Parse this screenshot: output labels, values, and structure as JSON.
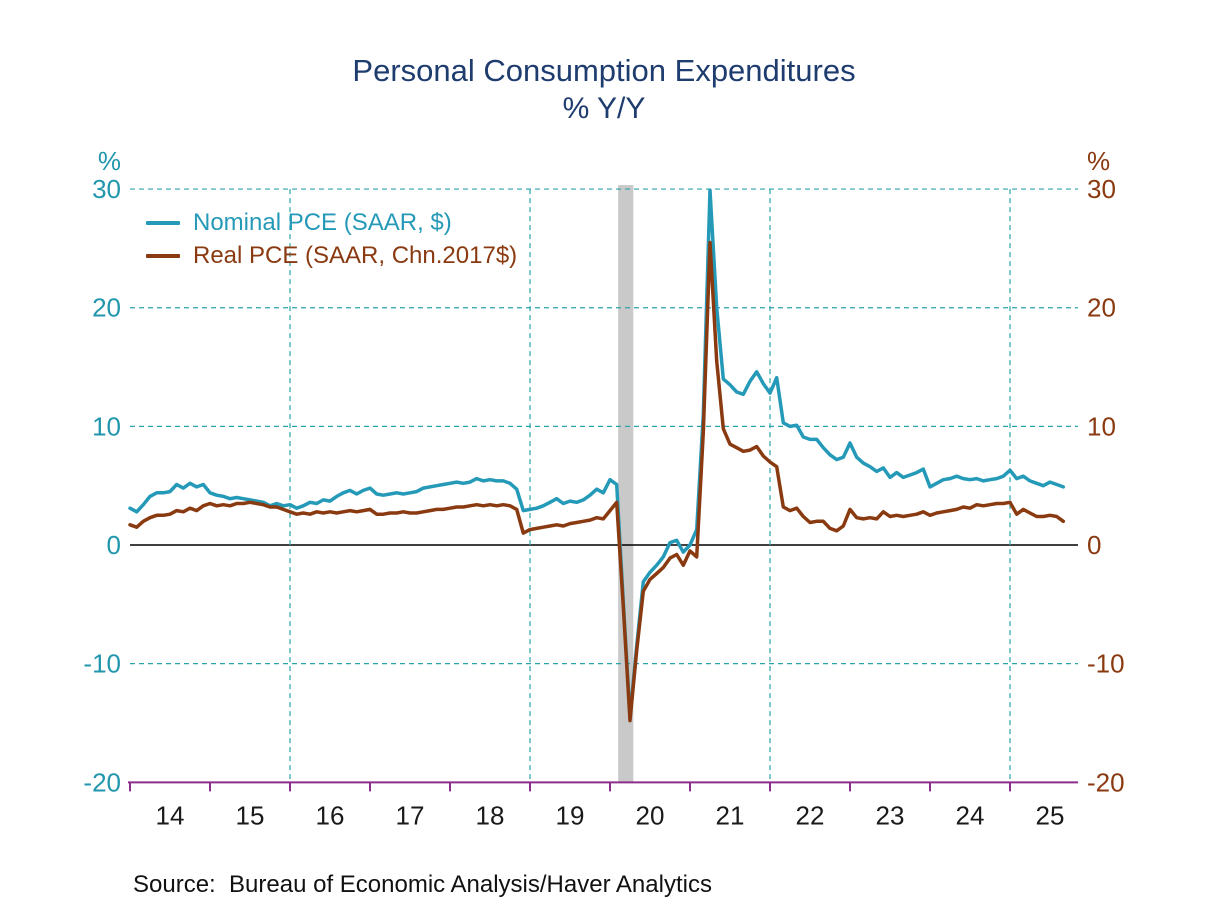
{
  "title": "Personal Consumption Expenditures",
  "subtitle": "% Y/Y",
  "source_text": "Source:  Bureau of Economic Analysis/Haver Analytics",
  "legend": [
    {
      "label": "Nominal PCE (SAAR, $)",
      "color": "#259ab8"
    },
    {
      "label": "Real PCE (SAAR, Chn.2017$)",
      "color": "#8a3a10"
    }
  ],
  "colors": {
    "title": "#1e3c6e",
    "nominal_line": "#259ab8",
    "real_line": "#8a3a10",
    "left_axis_text": "#2196ac",
    "right_axis_text": "#8a3a10",
    "x_axis_line": "#8b2f8b",
    "x_axis_text": "#1a1a1a",
    "gridline": "#2ba3ab",
    "zero_line": "#000000",
    "recession_band": "#c9c9c9"
  },
  "axes": {
    "left_unit": "%",
    "right_unit": "%",
    "y_ticks": [
      30,
      20,
      10,
      0,
      -10,
      -20
    ],
    "x_tick_years": [
      "14",
      "15",
      "16",
      "17",
      "18",
      "19",
      "20",
      "21",
      "22",
      "23",
      "24",
      "25"
    ],
    "ylim": [
      -20,
      30
    ],
    "vertical_gridline_month_offsets": [
      24,
      60,
      96,
      132
    ]
  },
  "chart_data": {
    "type": "line",
    "title": "Personal Consumption Expenditures",
    "subtitle": "% Y/Y",
    "xlabel": "",
    "ylabel": "%",
    "ylim": [
      -20,
      30
    ],
    "frequency": "monthly",
    "x_start": "2014-01",
    "x_end": "2025-09",
    "recession_band": {
      "from": "2020-02",
      "to": "2020-04"
    },
    "series": [
      {
        "id": "nominal-pce-line",
        "name": "Nominal PCE (SAAR, $)",
        "color": "#259ab8",
        "values": [
          3.1,
          2.8,
          3.4,
          4.1,
          4.4,
          4.4,
          4.5,
          5.1,
          4.8,
          5.2,
          4.9,
          5.1,
          4.4,
          4.2,
          4.1,
          3.9,
          4.0,
          3.9,
          3.8,
          3.7,
          3.6,
          3.3,
          3.5,
          3.3,
          3.4,
          3.1,
          3.3,
          3.6,
          3.5,
          3.8,
          3.7,
          4.1,
          4.4,
          4.6,
          4.3,
          4.6,
          4.8,
          4.3,
          4.2,
          4.3,
          4.4,
          4.3,
          4.4,
          4.5,
          4.8,
          4.9,
          5.0,
          5.1,
          5.2,
          5.3,
          5.2,
          5.3,
          5.6,
          5.4,
          5.5,
          5.4,
          5.4,
          5.2,
          4.7,
          2.9,
          3.0,
          3.1,
          3.3,
          3.6,
          3.9,
          3.5,
          3.7,
          3.6,
          3.8,
          4.2,
          4.7,
          4.4,
          5.5,
          5.1,
          -4.8,
          -14.5,
          -8.5,
          -3.1,
          -2.3,
          -1.7,
          -1.0,
          0.2,
          0.4,
          -0.6,
          0.0,
          1.3,
          11.0,
          29.9,
          20.0,
          14.0,
          13.5,
          12.9,
          12.7,
          13.8,
          14.6,
          13.6,
          12.8,
          14.1,
          10.3,
          10.0,
          10.1,
          9.1,
          8.9,
          8.9,
          8.2,
          7.6,
          7.2,
          7.4,
          8.6,
          7.4,
          6.9,
          6.6,
          6.2,
          6.5,
          5.7,
          6.1,
          5.7,
          5.9,
          6.1,
          6.4,
          4.9,
          5.2,
          5.5,
          5.6,
          5.8,
          5.6,
          5.5,
          5.6,
          5.4,
          5.5,
          5.6,
          5.8,
          6.3,
          5.6,
          5.8,
          5.4,
          5.2,
          5.0,
          5.3,
          5.1,
          4.9
        ]
      },
      {
        "id": "real-pce-line",
        "name": "Real PCE (SAAR, Chn.2017$)",
        "color": "#8a3a10",
        "values": [
          1.7,
          1.5,
          2.0,
          2.3,
          2.5,
          2.5,
          2.6,
          2.9,
          2.8,
          3.1,
          2.9,
          3.3,
          3.5,
          3.3,
          3.4,
          3.3,
          3.5,
          3.5,
          3.6,
          3.5,
          3.4,
          3.2,
          3.2,
          3.0,
          2.8,
          2.6,
          2.7,
          2.6,
          2.8,
          2.7,
          2.8,
          2.7,
          2.8,
          2.9,
          2.8,
          2.9,
          3.0,
          2.6,
          2.6,
          2.7,
          2.7,
          2.8,
          2.7,
          2.7,
          2.8,
          2.9,
          3.0,
          3.0,
          3.1,
          3.2,
          3.2,
          3.3,
          3.4,
          3.3,
          3.4,
          3.3,
          3.4,
          3.3,
          3.0,
          1.0,
          1.3,
          1.4,
          1.5,
          1.6,
          1.7,
          1.6,
          1.8,
          1.9,
          2.0,
          2.1,
          2.3,
          2.2,
          2.9,
          3.6,
          -5.2,
          -14.8,
          -8.9,
          -3.9,
          -2.9,
          -2.4,
          -1.9,
          -1.1,
          -0.8,
          -1.7,
          -0.5,
          -1.0,
          9.5,
          25.5,
          15.5,
          9.8,
          8.5,
          8.2,
          7.9,
          8.0,
          8.3,
          7.5,
          7.0,
          6.6,
          3.2,
          2.9,
          3.1,
          2.4,
          1.9,
          2.0,
          2.0,
          1.4,
          1.2,
          1.6,
          3.0,
          2.3,
          2.2,
          2.3,
          2.2,
          2.8,
          2.4,
          2.5,
          2.4,
          2.5,
          2.6,
          2.8,
          2.5,
          2.7,
          2.8,
          2.9,
          3.0,
          3.2,
          3.1,
          3.4,
          3.3,
          3.4,
          3.5,
          3.5,
          3.6,
          2.6,
          3.0,
          2.7,
          2.4,
          2.4,
          2.5,
          2.4,
          2.0
        ]
      }
    ],
    "legend_position": "top-left",
    "grid": "dashed, horizontal at every 10, vertical every 3 years (2016, 2019, 2022, 2025)"
  }
}
